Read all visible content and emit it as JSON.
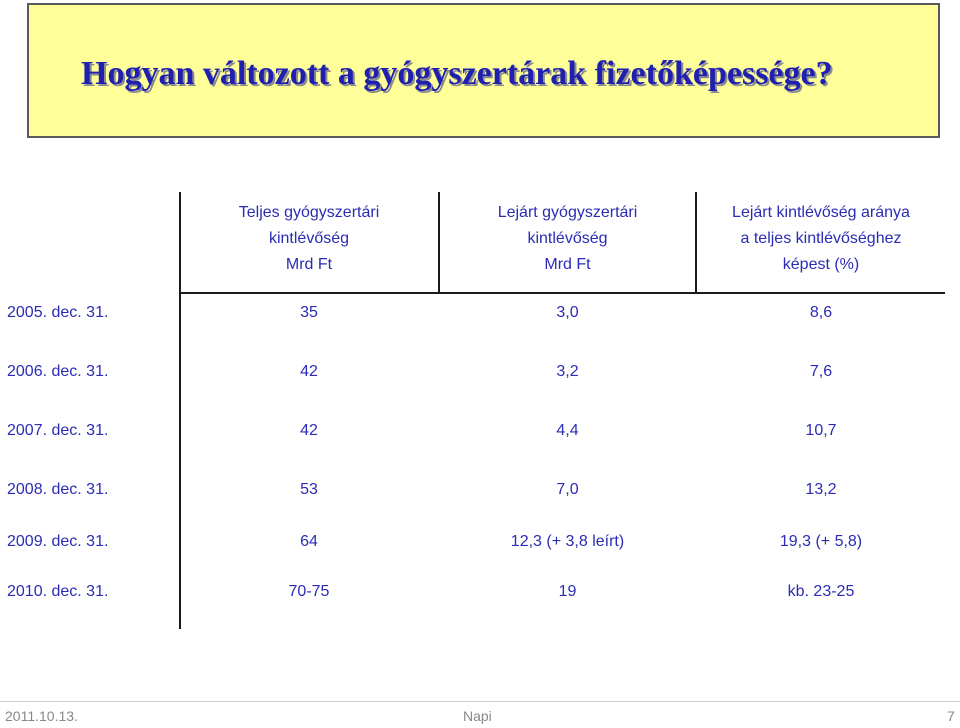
{
  "slide": {
    "title": "Hogyan változott a gyógyszertárak fizetőképessége?"
  },
  "table": {
    "headers": [
      {
        "lines": [
          "Teljes gyógyszertári",
          "kintlévőség",
          "Mrd Ft"
        ]
      },
      {
        "lines": [
          "Lejárt gyógyszertári",
          "kintlévőség",
          "Mrd Ft"
        ]
      },
      {
        "lines": [
          "Lejárt kintlévőség aránya",
          "a teljes kintlévőséghez",
          "képest (%)"
        ]
      }
    ],
    "rows": [
      {
        "date": "2005. dec. 31.",
        "total": "35",
        "overdue": "3,0",
        "ratio": "8,6"
      },
      {
        "date": "2006. dec. 31.",
        "total": "42",
        "overdue": "3,2",
        "ratio": "7,6"
      },
      {
        "date": "2007. dec. 31.",
        "total": "42",
        "overdue": "4,4",
        "ratio": "10,7"
      },
      {
        "date": "2008. dec. 31.",
        "total": "53",
        "overdue": "7,0",
        "ratio": "13,2"
      },
      {
        "date": "2009. dec. 31.",
        "total": "64",
        "overdue": "12,3  (+ 3,8 leírt)",
        "ratio": "19,3 (+ 5,8)"
      },
      {
        "date": "2010. dec. 31.",
        "total": "70-75",
        "overdue": "19",
        "ratio": "kb. 23-25"
      }
    ]
  },
  "footer": {
    "date": "2011.10.13.",
    "center": "Napi",
    "page": "7"
  },
  "colors": {
    "title_bg": "#ffff99",
    "title_text": "#1f1fb0",
    "body_text": "#2b2bb5"
  }
}
